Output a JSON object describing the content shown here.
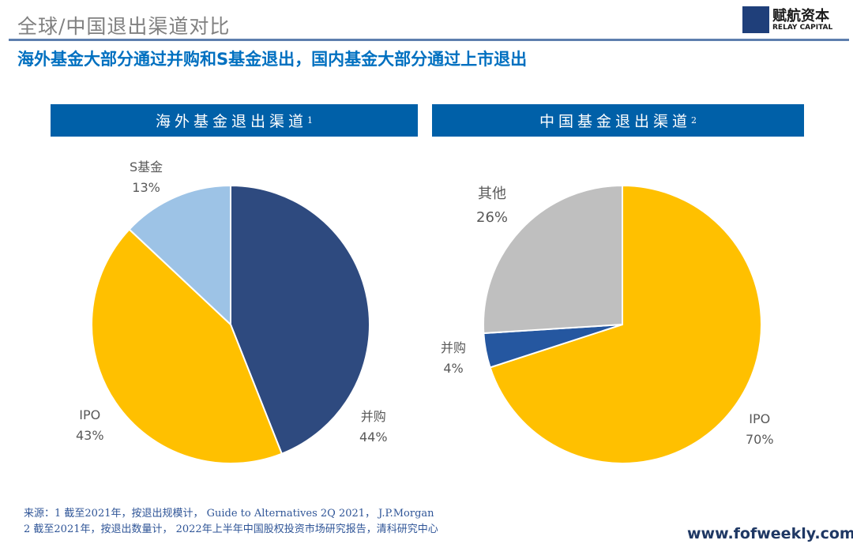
{
  "header": {
    "title": "全球/中国退出渠道对比",
    "logo_cn": "赋航资本",
    "logo_en": "RELAY CAPITAL",
    "subtitle": "海外基金大部分通过并购和S基金退出，国内基金大部分通过上市退出"
  },
  "chart_data": [
    {
      "type": "pie",
      "title": "海外基金退出渠道",
      "title_sup": "1",
      "start": "top",
      "direction": "clockwise",
      "slices": [
        {
          "label": "并购",
          "value": 44,
          "value_label": "44%",
          "color": "#2e4a7f"
        },
        {
          "label": "IPO",
          "value": 43,
          "value_label": "43%",
          "color": "#ffc000"
        },
        {
          "label": "S基金",
          "value": 13,
          "value_label": "13%",
          "color": "#9dc3e6"
        }
      ]
    },
    {
      "type": "pie",
      "title": "中国基金退出渠道",
      "title_sup": "2",
      "start": "top",
      "direction": "clockwise",
      "slices": [
        {
          "label": "IPO",
          "value": 70,
          "value_label": "70%",
          "color": "#ffc000"
        },
        {
          "label": "并购",
          "value": 4,
          "value_label": "4%",
          "color": "#2557a0"
        },
        {
          "label": "其他",
          "value": 26,
          "value_label": "26%",
          "color": "#bfbfbf"
        }
      ]
    }
  ],
  "footer": {
    "source_line1": "来源：1 截至2021年，按退出规模计， Guide to Alternatives 2Q 2021， J.P.Morgan",
    "source_line2": "2 截至2021年，按退出数量计， 2022年上半年中国股权投资市场研究报告，清科研究中心",
    "website": "www.fofweekly.com"
  }
}
